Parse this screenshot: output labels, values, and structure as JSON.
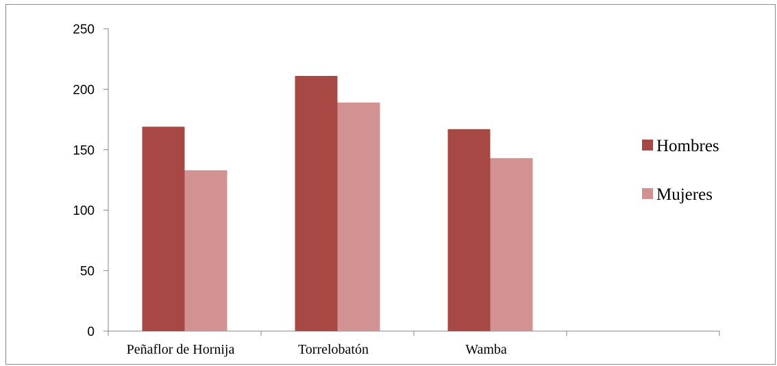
{
  "chart_data": {
    "type": "bar",
    "categories": [
      "Peñaflor de Hornija",
      "Torrelobatón",
      "Wamba",
      ""
    ],
    "series": [
      {
        "name": "Hombres",
        "values": [
          169,
          211,
          167,
          null
        ],
        "color": "#a84844"
      },
      {
        "name": "Mujeres",
        "values": [
          133,
          189,
          143,
          null
        ],
        "color": "#d39292"
      }
    ],
    "yticks": [
      0,
      50,
      100,
      150,
      200,
      250
    ],
    "ylim": [
      0,
      250
    ],
    "grid": false,
    "legend_position": "right",
    "title": "",
    "xlabel": "",
    "ylabel": ""
  }
}
